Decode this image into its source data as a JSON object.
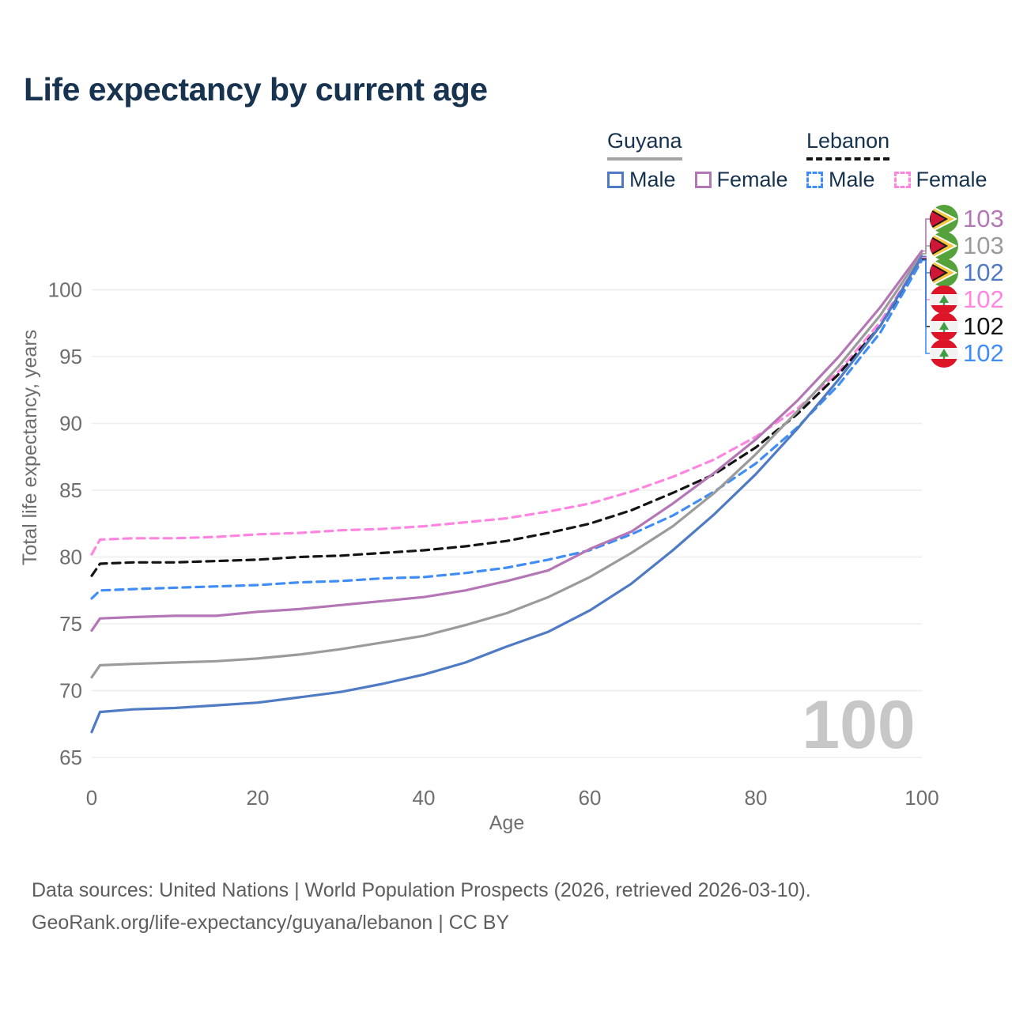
{
  "title": "Life expectancy by current age",
  "legend": {
    "groups": [
      {
        "country": "Guyana",
        "underline": "solid",
        "underline_color": "#a3a3a3",
        "items": [
          {
            "label": "Male",
            "color": "#4e7bc4",
            "dash": false
          },
          {
            "label": "Female",
            "color": "#b476b4",
            "dash": false
          }
        ]
      },
      {
        "country": "Lebanon",
        "underline": "dashed",
        "underline_color": "#141414",
        "items": [
          {
            "label": "Male",
            "color": "#3f8df5",
            "dash": true
          },
          {
            "label": "Female",
            "color": "#ff85e1",
            "dash": true
          }
        ]
      }
    ]
  },
  "chart_data": {
    "type": "line",
    "title": "Life expectancy by current age",
    "xlabel": "Age",
    "ylabel": "Total life expectancy, years",
    "xlim": [
      0,
      100
    ],
    "ylim": [
      64,
      104
    ],
    "x_ticks": [
      0,
      20,
      40,
      60,
      80,
      100
    ],
    "y_ticks": [
      65,
      70,
      75,
      80,
      85,
      90,
      95,
      100
    ],
    "grid": "horizontal",
    "legend_position": "top-right",
    "hover_age_watermark": "100",
    "x": [
      0,
      1,
      5,
      10,
      15,
      20,
      25,
      30,
      35,
      40,
      45,
      50,
      55,
      60,
      65,
      70,
      75,
      80,
      85,
      90,
      95,
      100
    ],
    "series": [
      {
        "id": "lebanon-female",
        "name": "Lebanon Female",
        "color": "#ff85e1",
        "dash": true,
        "end_label": "102",
        "values": [
          80.2,
          81.3,
          81.4,
          81.4,
          81.5,
          81.7,
          81.8,
          82.0,
          82.1,
          82.3,
          82.6,
          82.9,
          83.4,
          84.0,
          84.9,
          86.0,
          87.3,
          89.0,
          91.1,
          93.9,
          97.6,
          102.4
        ]
      },
      {
        "id": "lebanon-all",
        "name": "Lebanon (both sexes)",
        "color": "#141414",
        "dash": true,
        "end_label": "102",
        "values": [
          78.6,
          79.5,
          79.6,
          79.6,
          79.7,
          79.8,
          80.0,
          80.1,
          80.3,
          80.5,
          80.8,
          81.2,
          81.8,
          82.5,
          83.5,
          84.8,
          86.2,
          88.2,
          90.7,
          93.7,
          97.3,
          102.3
        ]
      },
      {
        "id": "lebanon-male",
        "name": "Lebanon Male",
        "color": "#3f8df5",
        "dash": true,
        "end_label": "102",
        "values": [
          76.9,
          77.5,
          77.6,
          77.7,
          77.8,
          77.9,
          78.1,
          78.2,
          78.4,
          78.5,
          78.8,
          79.2,
          79.8,
          80.5,
          81.7,
          83.1,
          84.9,
          87.0,
          89.7,
          92.9,
          96.8,
          102.2
        ]
      },
      {
        "id": "guyana-all",
        "name": "Guyana (both sexes)",
        "color": "#9b9b9b",
        "dash": false,
        "end_label": "103",
        "values": [
          71.0,
          71.9,
          72.0,
          72.1,
          72.2,
          72.4,
          72.7,
          73.1,
          73.6,
          74.1,
          74.9,
          75.8,
          77.0,
          78.5,
          80.3,
          82.3,
          84.8,
          87.7,
          90.9,
          94.3,
          98.1,
          102.7
        ]
      },
      {
        "id": "guyana-female",
        "name": "Guyana Female",
        "color": "#b476b4",
        "dash": false,
        "end_label": "103",
        "values": [
          74.5,
          75.4,
          75.5,
          75.6,
          75.6,
          75.9,
          76.1,
          76.4,
          76.7,
          77.0,
          77.5,
          78.2,
          79.0,
          80.6,
          81.9,
          84.0,
          86.3,
          88.8,
          91.7,
          95.0,
          98.7,
          102.9
        ]
      },
      {
        "id": "guyana-male",
        "name": "Guyana Male",
        "color": "#4e7bc4",
        "dash": false,
        "end_label": "102",
        "values": [
          66.9,
          68.4,
          68.6,
          68.7,
          68.9,
          69.1,
          69.5,
          69.9,
          70.5,
          71.2,
          72.1,
          73.3,
          74.4,
          76.0,
          78.0,
          80.5,
          83.2,
          86.2,
          89.6,
          93.3,
          97.3,
          102.5
        ]
      }
    ]
  },
  "right_labels": [
    {
      "flag": "guyana",
      "series": "guyana-female",
      "value": "103",
      "color": "#b476b4"
    },
    {
      "flag": "guyana",
      "series": "guyana-all",
      "value": "103",
      "color": "#9b9b9b"
    },
    {
      "flag": "guyana",
      "series": "guyana-male",
      "value": "102",
      "color": "#4e7bc4"
    },
    {
      "flag": "lebanon",
      "series": "lebanon-female",
      "value": "102",
      "color": "#ff85e1"
    },
    {
      "flag": "lebanon",
      "series": "lebanon-all",
      "value": "102",
      "color": "#141414"
    },
    {
      "flag": "lebanon",
      "series": "lebanon-male",
      "value": "102",
      "color": "#3f8df5"
    }
  ],
  "footer": {
    "line1": "Data sources: United Nations | World Population Prospects (2026, retrieved 2026-03-10).",
    "line2": "GeoRank.org/life-expectancy/guyana/lebanon | CC BY"
  }
}
